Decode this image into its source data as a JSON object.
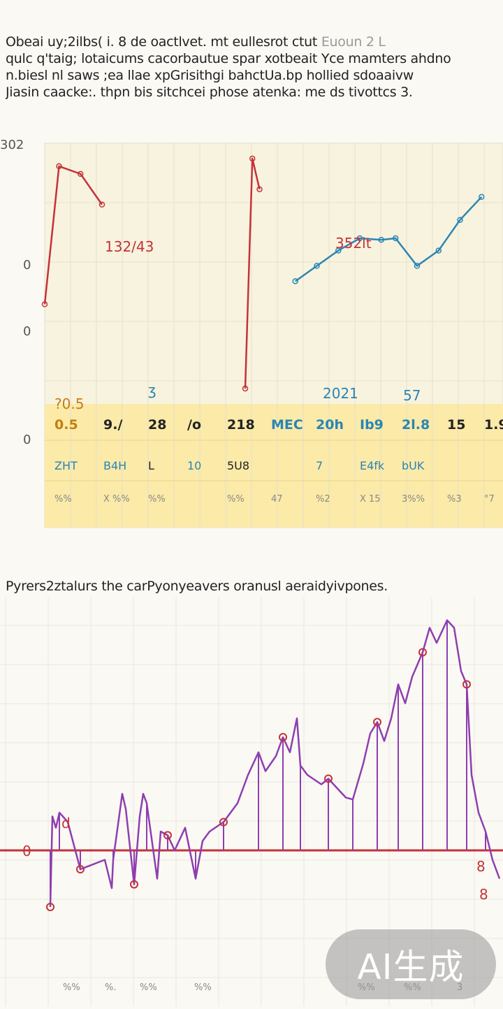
{
  "intro": {
    "line1": "Obeai uy;2ilbs( i. 8 de oactlvet. mt eullesrot ctut",
    "line1_faded": "Euoun 2 L",
    "line2": "qulc q'taig; lotaicums cacorbautue spar xotbeait Yce mamters ahdno",
    "line3": "n.biesl nl saws ;ea llae xpGrisithgi bahctUa.bp hollied sdoaaivw",
    "line4": "Jiasin caacke:. thpn bis sitchcei phose atenka: me ds tivottcs 3."
  },
  "chart2_caption": "Pyrers2ztalurs the carPyonyeavers oranusl aeraidyivpones.",
  "badge": "AI生成",
  "chart_data": [
    {
      "type": "line",
      "title": "",
      "ylabel": "",
      "y_ticks": [
        "302",
        "0",
        "0",
        "0"
      ],
      "grid": true,
      "annotations": [
        "132/43",
        "352lt",
        "ʒ",
        "?0.5",
        "2021",
        "57"
      ],
      "series": [
        {
          "color": "#c4323a",
          "x": [
            0,
            2,
            5,
            8
          ],
          "y": [
            5,
            95,
            90,
            70
          ]
        },
        {
          "color": "#c4323a",
          "x": [
            28,
            29,
            30
          ],
          "y": [
            -50,
            100,
            80
          ]
        },
        {
          "color": "#2a85b5",
          "x": [
            35,
            38,
            41,
            44,
            47,
            49,
            52,
            55,
            58,
            61
          ],
          "y": [
            20,
            30,
            40,
            48,
            47,
            48,
            30,
            40,
            60,
            75
          ]
        }
      ],
      "table": {
        "background": "#fbeaa8",
        "row1": [
          "0.5",
          "9./",
          "28",
          "/o",
          "218",
          "MEC",
          "20h",
          "Ib9",
          "2l.8",
          "15",
          "1.9"
        ],
        "row2": [
          "ZHT",
          "B4H",
          "L",
          "10",
          "5U8",
          "",
          "7",
          "E4fk",
          "bUK",
          "",
          ""
        ],
        "row3": [
          "%%",
          "X %%",
          "%%",
          "",
          "%%",
          "47",
          "%2",
          "X 15",
          "3%%",
          "%3",
          "°7"
        ],
        "row1_colors": [
          "#c47e12",
          "#222222",
          "#222222",
          "#222222",
          "#222222",
          "#2a85b5",
          "#2a85b5",
          "#2a85b5",
          "#2a85b5",
          "#222222",
          "#222222"
        ],
        "row2_colors": [
          "#2a85b5",
          "#2a85b5",
          "#222222",
          "#2a85b5",
          "#222222",
          "#222222",
          "#2a85b5",
          "#2a85b5",
          "#2a85b5",
          "#222222",
          "#222222"
        ]
      }
    },
    {
      "type": "line",
      "title": "",
      "baseline_color": "#c4323a",
      "series_color": "#8e3eb0",
      "grid": true,
      "annotations": [
        "0",
        "d",
        "8",
        "8"
      ],
      "x_tick_labels": [
        "%%",
        "%.",
        "%%",
        "%%",
        "%%",
        "%%",
        "3"
      ],
      "series": [
        {
          "color": "#8e3eb0",
          "points": [
            [
              72,
              -30
            ],
            [
              75,
              18
            ],
            [
              80,
              12
            ],
            [
              85,
              20
            ],
            [
              90,
              18
            ],
            [
              97,
              15
            ],
            [
              115,
              -10
            ],
            [
              150,
              -5
            ],
            [
              160,
              -20
            ],
            [
              162,
              -5
            ],
            [
              175,
              30
            ],
            [
              180,
              22
            ],
            [
              192,
              -18
            ],
            [
              200,
              18
            ],
            [
              205,
              30
            ],
            [
              210,
              25
            ],
            [
              225,
              -15
            ],
            [
              230,
              10
            ],
            [
              240,
              8
            ],
            [
              250,
              0
            ],
            [
              265,
              12
            ],
            [
              280,
              -15
            ],
            [
              290,
              5
            ],
            [
              300,
              10
            ],
            [
              320,
              15
            ],
            [
              340,
              25
            ],
            [
              355,
              40
            ],
            [
              370,
              52
            ],
            [
              380,
              42
            ],
            [
              395,
              50
            ],
            [
              405,
              60
            ],
            [
              415,
              52
            ],
            [
              425,
              70
            ],
            [
              430,
              45
            ],
            [
              440,
              40
            ],
            [
              460,
              35
            ],
            [
              470,
              38
            ],
            [
              485,
              32
            ],
            [
              495,
              28
            ],
            [
              505,
              27
            ],
            [
              520,
              46
            ],
            [
              530,
              62
            ],
            [
              540,
              68
            ],
            [
              550,
              58
            ],
            [
              560,
              70
            ],
            [
              570,
              88
            ],
            [
              580,
              78
            ],
            [
              590,
              92
            ],
            [
              605,
              105
            ],
            [
              615,
              118
            ],
            [
              625,
              110
            ],
            [
              640,
              122
            ],
            [
              650,
              118
            ],
            [
              660,
              95
            ],
            [
              668,
              88
            ],
            [
              675,
              40
            ],
            [
              685,
              20
            ],
            [
              695,
              10
            ],
            [
              705,
              -5
            ],
            [
              715,
              -15
            ]
          ]
        }
      ]
    }
  ]
}
